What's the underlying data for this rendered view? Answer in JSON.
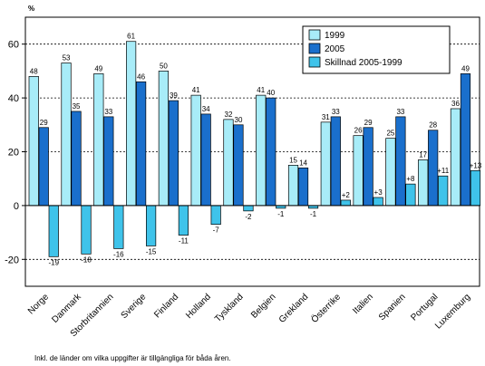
{
  "chart_data": {
    "type": "bar",
    "unit_label": "%",
    "ylim": [
      -30,
      70
    ],
    "yticks": [
      -20,
      0,
      20,
      40,
      60
    ],
    "grid": true,
    "legend_placement": "top-right",
    "categories": [
      "Norge",
      "Danmark",
      "Storbritannien",
      "Sverige",
      "Finland",
      "Holland",
      "Tyskland",
      "Belgien",
      "Grekland",
      "Österrike",
      "Italien",
      "Spanien",
      "Portugal",
      "Luxemburg"
    ],
    "series": [
      {
        "name": "1999",
        "color": "#a8ecf8",
        "values": [
          48,
          53,
          49,
          61,
          50,
          41,
          32,
          41,
          15,
          31,
          26,
          25,
          17,
          36
        ],
        "labels": [
          "48",
          "53",
          "49",
          "61",
          "50",
          "41",
          "32",
          "41",
          "15",
          "31",
          "26",
          "25",
          "17",
          "36"
        ]
      },
      {
        "name": "2005",
        "color": "#1a6fcc",
        "values": [
          29,
          35,
          33,
          46,
          39,
          34,
          30,
          40,
          14,
          33,
          29,
          33,
          28,
          49
        ],
        "labels": [
          "29",
          "35",
          "33",
          "46",
          "39",
          "34",
          "30",
          "40",
          "14",
          "33",
          "29",
          "33",
          "28",
          "49"
        ]
      },
      {
        "name": "Skillnad 2005-1999",
        "color": "#3fc3ea",
        "values": [
          -19,
          -18,
          -16,
          -15,
          -11,
          -7,
          -2,
          -1,
          -1,
          2,
          3,
          8,
          11,
          13
        ],
        "labels": [
          "-19",
          "-18",
          "-16",
          "-15",
          "-11",
          "-7",
          "-2",
          "-1",
          "-1",
          "+2",
          "+3",
          "+8",
          "+11",
          "+13"
        ]
      }
    ],
    "footnote": "Inkl. de länder om vilka uppgifter är tillgängliga för båda åren."
  }
}
